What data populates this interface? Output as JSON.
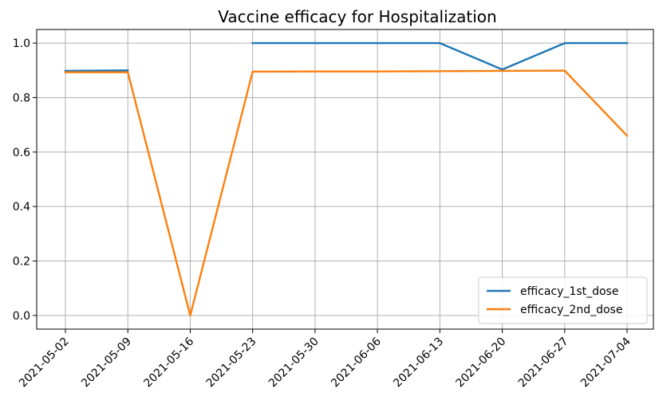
{
  "chart_data": {
    "type": "line",
    "title": "Vaccine efficacy for Hospitalization",
    "xlabel": "",
    "ylabel": "",
    "categories": [
      "2021-05-02",
      "2021-05-09",
      "2021-05-16",
      "2021-05-23",
      "2021-05-30",
      "2021-06-06",
      "2021-06-13",
      "2021-06-20",
      "2021-06-27",
      "2021-07-04"
    ],
    "ylim": [
      -0.05,
      1.05
    ],
    "yticks": [
      "0.0",
      "0.2",
      "0.4",
      "0.6",
      "0.8",
      "1.0"
    ],
    "grid": true,
    "legend_position": "bottom-right",
    "series": [
      {
        "name": "efficacy_1st_dose",
        "color": "#1f77b4",
        "values": [
          0.898,
          0.9,
          null,
          1.0,
          1.0,
          1.0,
          1.0,
          0.903,
          1.0,
          1.0
        ]
      },
      {
        "name": "efficacy_2nd_dose",
        "color": "#ff7f0e",
        "values": [
          0.893,
          0.893,
          0.0,
          0.895,
          0.896,
          0.896,
          0.897,
          0.898,
          0.899,
          0.66
        ]
      }
    ]
  }
}
